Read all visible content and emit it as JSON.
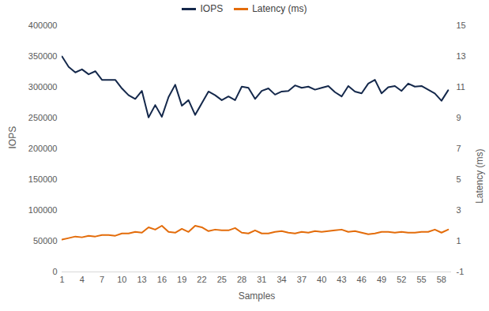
{
  "chart_data": {
    "type": "line",
    "x_label": "Samples",
    "y_label": "IOPS",
    "y2_label": "Latency (ms)",
    "x": [
      1,
      2,
      3,
      4,
      5,
      6,
      7,
      8,
      9,
      10,
      11,
      12,
      13,
      14,
      15,
      16,
      17,
      18,
      19,
      20,
      21,
      22,
      23,
      24,
      25,
      26,
      27,
      28,
      29,
      30,
      31,
      32,
      33,
      34,
      35,
      36,
      37,
      38,
      39,
      40,
      41,
      42,
      43,
      44,
      45,
      46,
      47,
      48,
      49,
      50,
      51,
      52,
      53,
      54,
      55,
      56,
      57,
      58,
      59
    ],
    "xlim": [
      1,
      59.5
    ],
    "xticks": [
      1,
      4,
      7,
      10,
      13,
      16,
      19,
      22,
      25,
      28,
      31,
      34,
      37,
      40,
      43,
      46,
      49,
      52,
      55,
      58
    ],
    "ylim": [
      0,
      400000
    ],
    "yticks": [
      0,
      50000,
      100000,
      150000,
      200000,
      250000,
      300000,
      350000,
      400000
    ],
    "y2lim": [
      -1,
      15
    ],
    "y2ticks": [
      -1,
      1,
      3,
      5,
      7,
      9,
      11,
      13,
      15
    ],
    "grid": false,
    "legend": "top",
    "series": [
      {
        "name": "IOPS",
        "color": "#14284b",
        "values": [
          350000,
          333000,
          324000,
          329000,
          321000,
          326000,
          312000,
          312000,
          312000,
          298000,
          287000,
          281000,
          294000,
          251000,
          271000,
          252000,
          284000,
          304000,
          270000,
          279000,
          255000,
          274000,
          293000,
          287000,
          279000,
          285000,
          279000,
          301000,
          299000,
          281000,
          294000,
          298000,
          288000,
          293000,
          294000,
          303000,
          299000,
          301000,
          296000,
          299000,
          302000,
          292000,
          285000,
          302000,
          293000,
          290000,
          306000,
          312000,
          290000,
          300000,
          302000,
          294000,
          306000,
          301000,
          302000,
          296000,
          290000,
          278000,
          295000
        ]
      },
      {
        "name": "Latency (ms)",
        "color": "#e36c0a",
        "axis": "y2",
        "values": [
          1.1,
          1.2,
          1.3,
          1.25,
          1.35,
          1.3,
          1.4,
          1.4,
          1.35,
          1.5,
          1.5,
          1.6,
          1.55,
          1.9,
          1.75,
          2.0,
          1.6,
          1.55,
          1.8,
          1.6,
          2.0,
          1.9,
          1.65,
          1.75,
          1.7,
          1.7,
          1.85,
          1.55,
          1.5,
          1.7,
          1.5,
          1.5,
          1.6,
          1.65,
          1.55,
          1.5,
          1.6,
          1.55,
          1.65,
          1.6,
          1.65,
          1.7,
          1.75,
          1.6,
          1.65,
          1.55,
          1.45,
          1.5,
          1.6,
          1.6,
          1.55,
          1.6,
          1.55,
          1.55,
          1.6,
          1.6,
          1.75,
          1.55,
          1.75
        ]
      }
    ]
  }
}
